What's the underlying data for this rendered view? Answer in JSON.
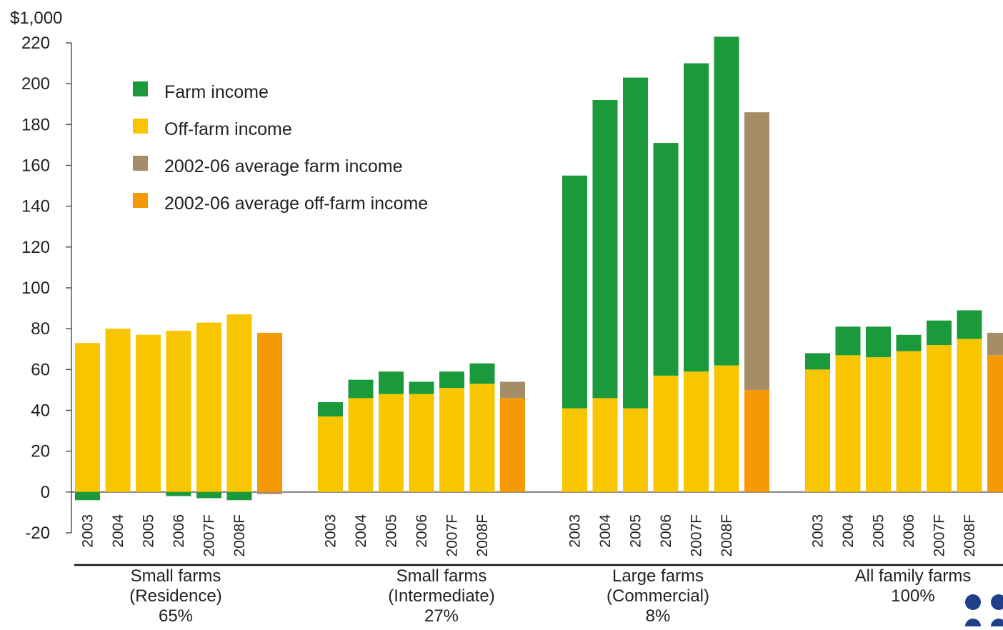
{
  "chart_data": {
    "type": "bar",
    "stacked": true,
    "y_unit_label": "$1,000",
    "ylim": [
      -20,
      220
    ],
    "y_ticks": [
      -20,
      0,
      20,
      40,
      60,
      80,
      100,
      120,
      140,
      160,
      180,
      200,
      220
    ],
    "grid": false,
    "legend_position": "top-left",
    "legend": [
      {
        "label": "Farm income",
        "color": "#1a9a3a"
      },
      {
        "label": "Off-farm income",
        "color": "#f7c600"
      },
      {
        "label": "2002-06 average farm income",
        "color": "#a58d68"
      },
      {
        "label": "2002-06 average off-farm income",
        "color": "#f59a05"
      }
    ],
    "groups": [
      {
        "label_lines": [
          "Small farms",
          "(Residence)",
          "65%"
        ],
        "years": [
          "2003",
          "2004",
          "2005",
          "2006",
          "2007F",
          "2008F"
        ],
        "off_farm": [
          73,
          80,
          77,
          79,
          83,
          87
        ],
        "farm": [
          -4,
          0,
          0,
          -2,
          -3,
          -4
        ],
        "avg_off_farm": 78,
        "avg_farm": -1
      },
      {
        "label_lines": [
          "Small farms",
          "(Intermediate)",
          "27%"
        ],
        "years": [
          "2003",
          "2004",
          "2005",
          "2006",
          "2007F",
          "2008F"
        ],
        "off_farm": [
          37,
          46,
          48,
          48,
          51,
          53
        ],
        "farm": [
          7,
          9,
          11,
          6,
          8,
          10
        ],
        "avg_off_farm": 46,
        "avg_farm": 8
      },
      {
        "label_lines": [
          "Large farms",
          "(Commercial)",
          "8%"
        ],
        "years": [
          "2003",
          "2004",
          "2005",
          "2006",
          "2007F",
          "2008F"
        ],
        "off_farm": [
          41,
          46,
          41,
          57,
          59,
          62
        ],
        "farm": [
          114,
          146,
          162,
          114,
          151,
          161
        ],
        "avg_off_farm": 50,
        "avg_farm": 136
      },
      {
        "label_lines": [
          "All family farms",
          "100%"
        ],
        "years": [
          "2003",
          "2004",
          "2005",
          "2006",
          "2007F",
          "2008F"
        ],
        "off_farm": [
          60,
          67,
          66,
          69,
          72,
          75
        ],
        "farm": [
          8,
          14,
          15,
          8,
          12,
          14
        ],
        "avg_off_farm": 67,
        "avg_farm": 11
      }
    ]
  }
}
